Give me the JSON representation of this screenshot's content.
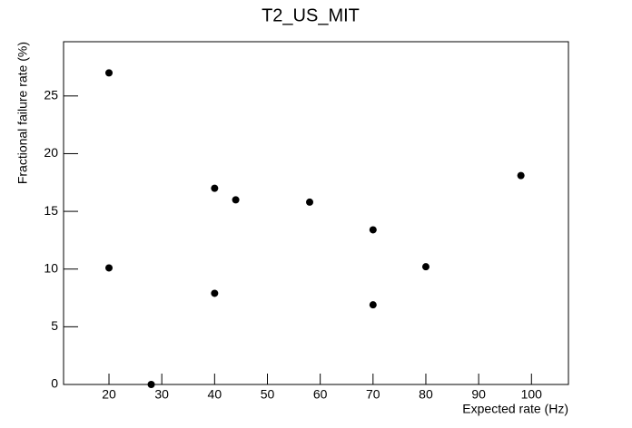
{
  "chart_data": {
    "type": "scatter",
    "title": "T2_US_MIT",
    "x_label": "Expected rate (Hz)",
    "y_label": "Fractional failure rate (%)",
    "x": [
      20,
      20,
      28,
      40,
      40,
      44,
      58,
      70,
      70,
      80,
      98
    ],
    "values": [
      27,
      10.1,
      0,
      17,
      7.9,
      16,
      15.8,
      13.4,
      6.9,
      10.2,
      18.1
    ],
    "color": "#000000",
    "xlim": [
      11.4,
      107
    ],
    "xticks": [
      20,
      30,
      40,
      50,
      60,
      70,
      80,
      90,
      100
    ],
    "ylim": [
      0,
      29.7
    ],
    "yticks": [
      0,
      5,
      10,
      15,
      20,
      25
    ]
  }
}
